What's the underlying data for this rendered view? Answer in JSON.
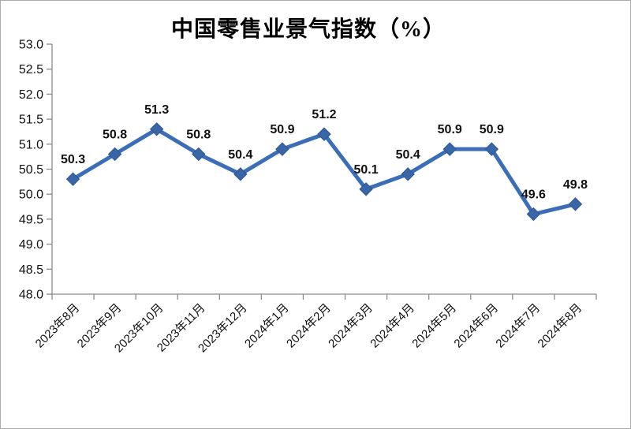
{
  "chart_data": {
    "type": "line",
    "title": "中国零售业景气指数（%）",
    "categories": [
      "2023年8月",
      "2023年9月",
      "2023年10月",
      "2023年11月",
      "2023年12月",
      "2024年1月",
      "2024年2月",
      "2024年3月",
      "2024年4月",
      "2024年5月",
      "2024年6月",
      "2024年7月",
      "2024年8月"
    ],
    "series": [
      {
        "name": "中国零售业景气指数",
        "values": [
          50.3,
          50.8,
          51.3,
          50.8,
          50.4,
          50.9,
          51.2,
          50.1,
          50.4,
          50.9,
          50.9,
          49.6,
          49.8
        ]
      }
    ],
    "data_labels": [
      "50.3",
      "50.8",
      "51.3",
      "50.8",
      "50.4",
      "50.9",
      "51.2",
      "50.1",
      "50.4",
      "50.9",
      "50.9",
      "49.6",
      "49.8"
    ],
    "ylim": [
      48.0,
      53.0
    ],
    "ytick_step": 0.5,
    "ytick_labels": [
      "48.0",
      "48.5",
      "49.0",
      "49.5",
      "50.0",
      "50.5",
      "51.0",
      "51.5",
      "52.0",
      "52.5",
      "53.0"
    ],
    "xlabel": "",
    "ylabel": "",
    "grid": "off",
    "legend": "none",
    "marker_shape": "diamond",
    "colors": {
      "line": "#3d6eb5",
      "marker_fill": "#3a66a6",
      "marker_edge": "#2d5591",
      "axis": "#8c8c8c",
      "text": "#111111",
      "background": "#ffffff",
      "frame_border": "#ababab"
    }
  }
}
